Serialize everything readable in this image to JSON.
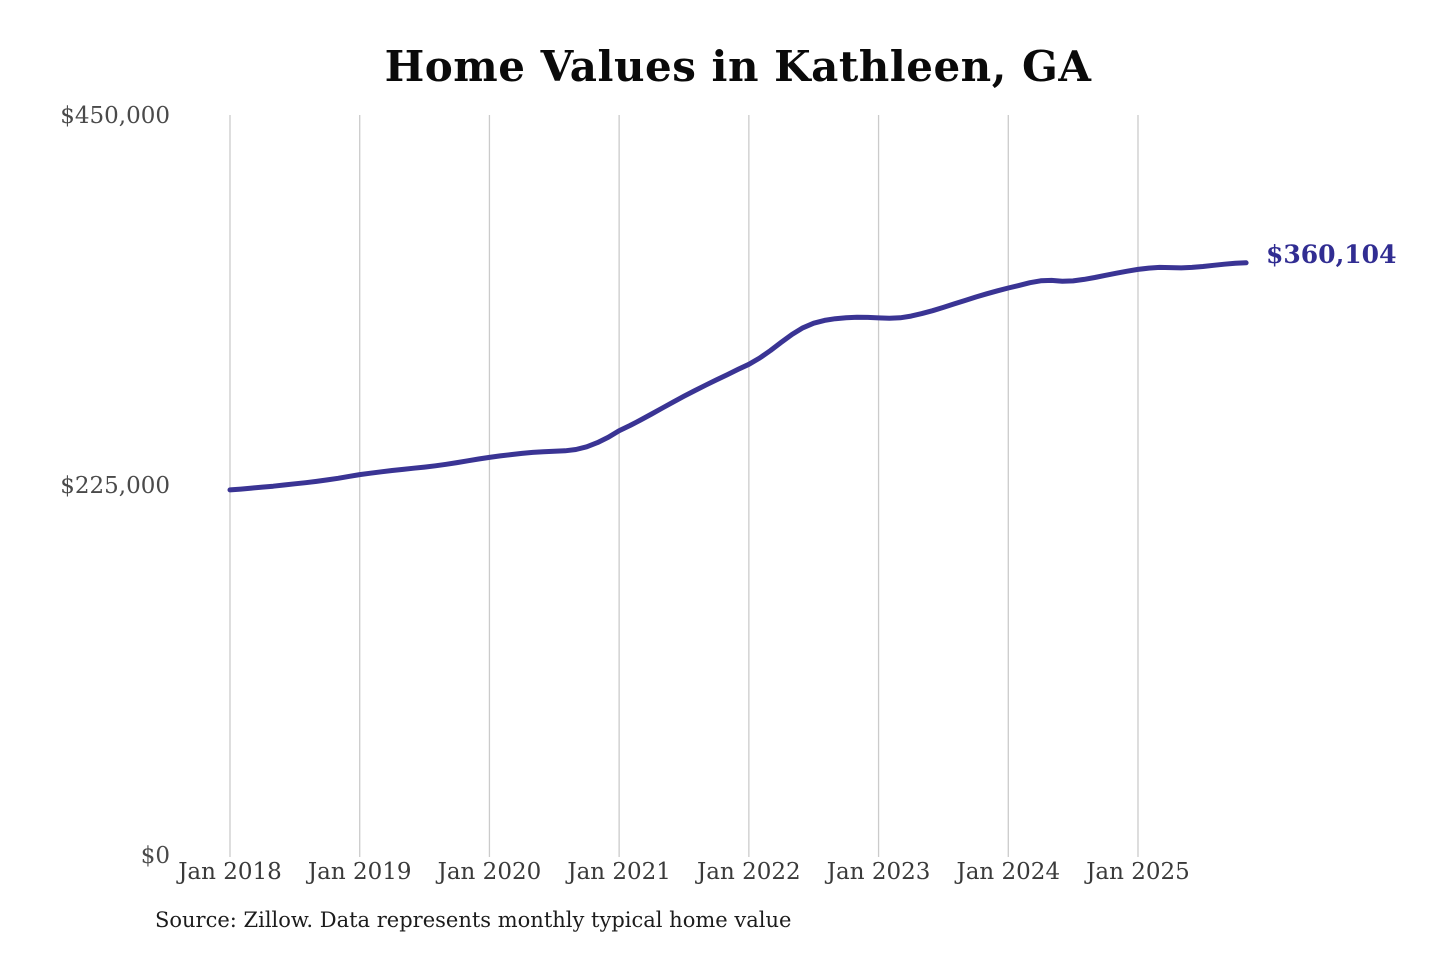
{
  "title": "Home Values in Kathleen, GA",
  "source_note": "Source: Zillow. Data represents monthly typical home value",
  "end_label": "$360,104",
  "colors": {
    "line": "#3a3494",
    "end_label_text": "#312d92",
    "gridline": "#cbcbcb",
    "y_tick_text": "#4a4a4a",
    "x_tick_text": "#3a3a3a",
    "title_text": "#0a0a0a",
    "source_text": "#1c1c1c",
    "background": "#ffffff"
  },
  "chart_data": {
    "type": "line",
    "title": "Home Values in Kathleen, GA",
    "series_name": "Monthly typical home value",
    "frequency": "monthly",
    "grid": "vertical-only",
    "legend": "none",
    "ylim": [
      0,
      450000
    ],
    "final_value": 360104,
    "final_value_label": "$360,104",
    "y_ticks": [
      {
        "value": 0,
        "label": "$0"
      },
      {
        "value": 225000,
        "label": "$225,000"
      },
      {
        "value": 450000,
        "label": "$450,000"
      }
    ],
    "x_tick_labels": [
      "Jan 2018",
      "Jan 2019",
      "Jan 2020",
      "Jan 2021",
      "Jan 2022",
      "Jan 2023",
      "Jan 2024",
      "Jan 2025"
    ],
    "x_tick_month_indices": [
      0,
      12,
      24,
      36,
      48,
      60,
      72,
      84
    ],
    "x": [
      "2018-01",
      "2018-02",
      "2018-03",
      "2018-04",
      "2018-05",
      "2018-06",
      "2018-07",
      "2018-08",
      "2018-09",
      "2018-10",
      "2018-11",
      "2018-12",
      "2019-01",
      "2019-02",
      "2019-03",
      "2019-04",
      "2019-05",
      "2019-06",
      "2019-07",
      "2019-08",
      "2019-09",
      "2019-10",
      "2019-11",
      "2019-12",
      "2020-01",
      "2020-02",
      "2020-03",
      "2020-04",
      "2020-05",
      "2020-06",
      "2020-07",
      "2020-08",
      "2020-09",
      "2020-10",
      "2020-11",
      "2020-12",
      "2021-01",
      "2021-02",
      "2021-03",
      "2021-04",
      "2021-05",
      "2021-06",
      "2021-07",
      "2021-08",
      "2021-09",
      "2021-10",
      "2021-11",
      "2021-12",
      "2022-01",
      "2022-02",
      "2022-03",
      "2022-04",
      "2022-05",
      "2022-06",
      "2022-07",
      "2022-08",
      "2022-09",
      "2022-10",
      "2022-11",
      "2022-12",
      "2023-01",
      "2023-02",
      "2023-03",
      "2023-04",
      "2023-05",
      "2023-06",
      "2023-07",
      "2023-08",
      "2023-09",
      "2023-10",
      "2023-11",
      "2023-12",
      "2024-01",
      "2024-02",
      "2024-03",
      "2024-04",
      "2024-05",
      "2024-06",
      "2024-07",
      "2024-08",
      "2024-09",
      "2024-10",
      "2024-11",
      "2024-12",
      "2025-01",
      "2025-02",
      "2025-03",
      "2025-04",
      "2025-05",
      "2025-06",
      "2025-07",
      "2025-08",
      "2025-09",
      "2025-10",
      "2025-11"
    ],
    "values": [
      222000,
      222500,
      223100,
      223700,
      224300,
      225000,
      225700,
      226400,
      227200,
      228100,
      229100,
      230200,
      231300,
      232200,
      233000,
      233800,
      234500,
      235200,
      235900,
      236700,
      237600,
      238600,
      239700,
      240800,
      241800,
      242700,
      243500,
      244200,
      244800,
      245200,
      245500,
      245800,
      246600,
      248200,
      250800,
      254000,
      258000,
      261200,
      264600,
      268200,
      271800,
      275400,
      279000,
      282400,
      285700,
      288900,
      292100,
      295300,
      298400,
      302200,
      306800,
      311800,
      316600,
      320600,
      323400,
      325100,
      326100,
      326700,
      327000,
      326900,
      326600,
      326400,
      326700,
      327700,
      329200,
      331000,
      333000,
      335100,
      337200,
      339300,
      341300,
      343100,
      344800,
      346400,
      348000,
      349200,
      349400,
      348900,
      349100,
      350000,
      351200,
      352500,
      353800,
      355000,
      356100,
      356900,
      357300,
      357200,
      357000,
      357300,
      357900,
      358600,
      359300,
      359800,
      360104
    ]
  }
}
